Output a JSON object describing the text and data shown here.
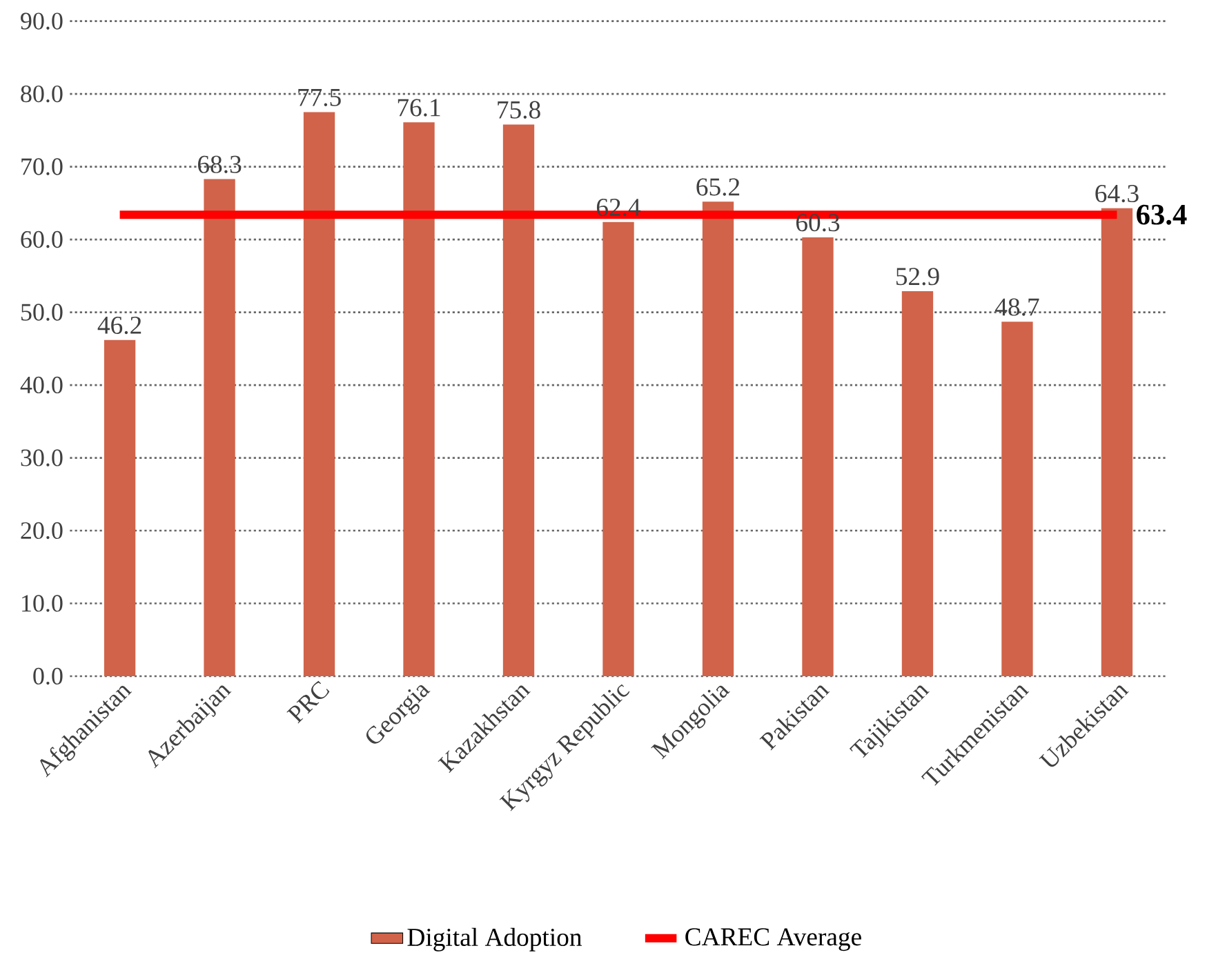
{
  "chart_data": {
    "type": "bar",
    "categories": [
      "Afghanistan",
      "Azerbaijan",
      "PRC",
      "Georgia",
      "Kazakhstan",
      "Kyrgyz Republic",
      "Mongolia",
      "Pakistan",
      "Tajikistan",
      "Turkmenistan",
      "Uzbekistan"
    ],
    "series": [
      {
        "name": "Digital Adoption",
        "color": "#d0634a",
        "values": [
          46.2,
          68.3,
          77.5,
          76.1,
          75.8,
          62.4,
          65.2,
          60.3,
          52.9,
          48.7,
          64.3
        ],
        "value_labels": [
          "46.2",
          "68.3",
          "77.5",
          "76.1",
          "75.8",
          "62.4",
          "65.2",
          "60.3",
          "52.9",
          "48.7",
          "64.3"
        ]
      },
      {
        "name": "CAREC Average",
        "type": "line",
        "color": "#ff0000",
        "values": [
          63.4,
          63.4,
          63.4,
          63.4,
          63.4,
          63.4,
          63.4,
          63.4,
          63.4,
          63.4,
          63.4
        ],
        "value_labels": [
          null,
          null,
          null,
          null,
          null,
          null,
          null,
          null,
          null,
          null,
          "63.4"
        ]
      }
    ],
    "ylim": [
      0,
      90
    ],
    "yticks": [
      {
        "value": 0,
        "label": "0.0"
      },
      {
        "value": 10,
        "label": "10.0"
      },
      {
        "value": 20,
        "label": "20.0"
      },
      {
        "value": 30,
        "label": "30.0"
      },
      {
        "value": 40,
        "label": "40.0"
      },
      {
        "value": 50,
        "label": "50.0"
      },
      {
        "value": 60,
        "label": "60.0"
      },
      {
        "value": 70,
        "label": "70.0"
      },
      {
        "value": 80,
        "label": "80.0"
      },
      {
        "value": 90,
        "label": "90.0"
      }
    ],
    "grid": "y",
    "legend": "bottom"
  }
}
